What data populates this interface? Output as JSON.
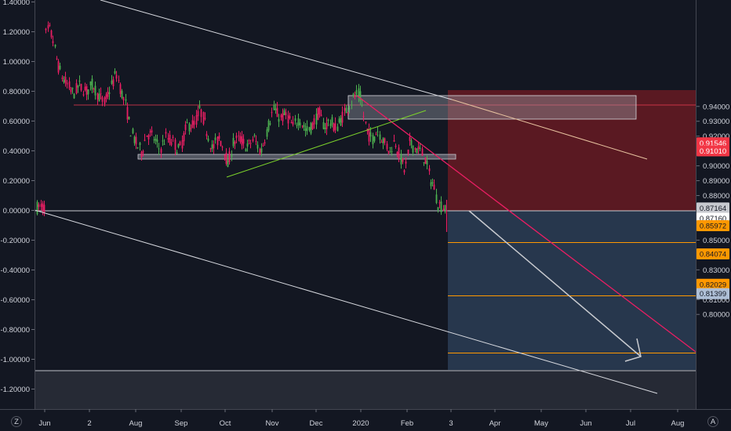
{
  "chart_data": {
    "type": "candlestick",
    "title": "",
    "x_ticks": [
      "Jun",
      "2",
      "Aug",
      "Sep",
      "Oct",
      "Nov",
      "Dec",
      "2020",
      "Feb",
      "3",
      "Apr",
      "May",
      "Jun",
      "Jul",
      "Aug"
    ],
    "left_axis": {
      "label": "",
      "range": [
        -1.3,
        1.4
      ],
      "ticks": [
        "1.40000",
        "1.20000",
        "1.00000",
        "0.80000",
        "0.60000",
        "0.40000",
        "0.20000",
        "0.00000",
        "-0.20000",
        "-0.40000",
        "-0.60000",
        "-0.80000",
        "-1.00000",
        "-1.20000"
      ]
    },
    "right_axis": {
      "label": "",
      "range": [
        0.7965,
        0.9465
      ],
      "ticks": [
        "0.94000",
        "0.93000",
        "0.92000",
        "0.91000",
        "0.90000",
        "0.89000",
        "0.88000",
        "0.87000",
        "0.86000",
        "0.85000",
        "0.84000",
        "0.83000",
        "0.82000",
        "0.81000",
        "0.80000"
      ]
    },
    "price_tags": [
      {
        "label": "0.91546",
        "color": "#f23645",
        "value": 0.91546
      },
      {
        "label": "0.91010",
        "color": "#f23645",
        "value": 0.9101
      },
      {
        "label": "0.87164",
        "color": "#c7c9cf",
        "value": 0.87164
      },
      {
        "label": "0.87160",
        "color": "#ffffff",
        "value": 0.8716
      },
      {
        "label": "0.85972",
        "color": "#ff9800",
        "value": 0.85972
      },
      {
        "label": "0.84074",
        "color": "#ff9800",
        "value": 0.84074
      },
      {
        "label": "0.82029",
        "color": "#ff9800",
        "value": 0.82029
      },
      {
        "label": "0.81399",
        "color": "#aebfd6",
        "value": 0.81399
      }
    ],
    "colors": {
      "up": "#4caf50",
      "down": "#e91e63",
      "background": "#131722"
    },
    "bottom_left_badge": "Z",
    "bottom_right_badge": "A"
  }
}
